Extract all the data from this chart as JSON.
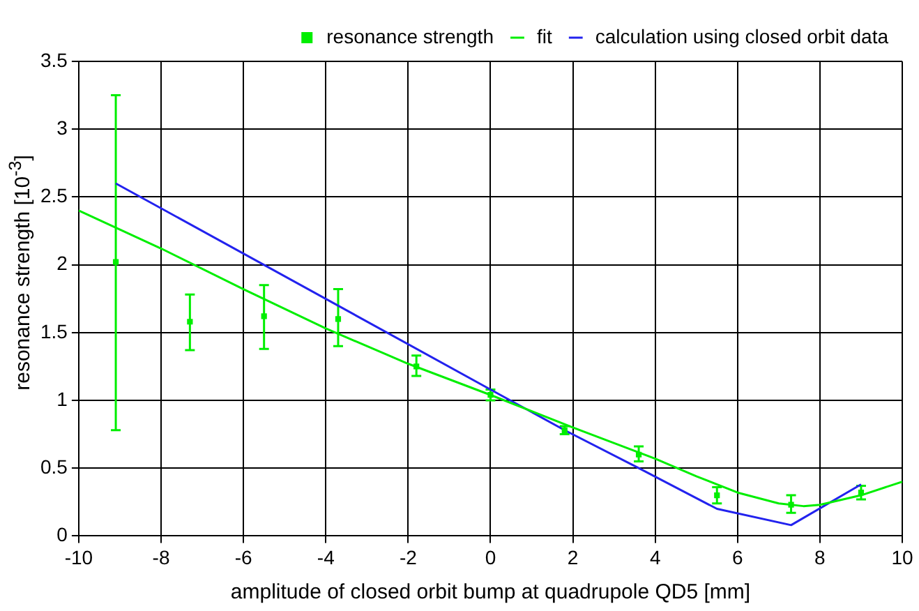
{
  "chart_data": {
    "type": "scatter",
    "xlabel": "amplitude of closed orbit bump at quadrupole QD5 [mm]",
    "ylabel": "resonance strength [10$^{-3}$]",
    "xlim": [
      -10,
      10
    ],
    "xticks": [
      -10,
      -8,
      -6,
      -4,
      -2,
      0,
      2,
      4,
      6,
      8,
      10
    ],
    "ylim": [
      0,
      3.5
    ],
    "yticks": [
      0,
      0.5,
      1,
      1.5,
      2,
      2.5,
      3,
      3.5
    ],
    "grid": true,
    "legend": "top right",
    "series": [
      {
        "name": "resonance strength",
        "color": "#00ee00",
        "marker": "square",
        "x": [
          -9.1,
          -7.3,
          -5.5,
          -3.7,
          -1.8,
          0,
          1.8,
          3.6,
          5.5,
          7.3,
          9
        ],
        "values": [
          2.02,
          1.58,
          1.62,
          1.6,
          1.25,
          1.04,
          0.78,
          0.6,
          0.3,
          0.23,
          0.32
        ],
        "errors": [
          [
            0.78,
            3.25
          ],
          [
            1.37,
            1.78
          ],
          [
            1.38,
            1.85
          ],
          [
            1.4,
            1.82
          ],
          [
            1.18,
            1.33
          ],
          [
            1.0,
            1.08
          ],
          [
            0.75,
            0.81
          ],
          [
            0.55,
            0.66
          ],
          [
            0.24,
            0.36
          ],
          [
            0.17,
            0.3
          ],
          [
            0.27,
            0.37
          ]
        ]
      },
      {
        "name": "fit",
        "type": "line",
        "color": "#00ee00",
        "line_style": "solid",
        "x": [
          -10,
          -8,
          -6,
          -4,
          -2,
          0,
          2,
          4,
          5,
          6,
          7,
          7.6,
          8,
          9,
          10
        ],
        "values": [
          2.4,
          2.12,
          1.82,
          1.53,
          1.27,
          1.04,
          0.8,
          0.57,
          0.44,
          0.32,
          0.24,
          0.22,
          0.23,
          0.3,
          0.4
        ]
      },
      {
        "name": "calculation using closed orbit data",
        "type": "line",
        "color": "#2222ee",
        "line_style": "solid",
        "x": [
          -9.1,
          0,
          1.8,
          3.6,
          5.5,
          7.3,
          9
        ],
        "values": [
          2.6,
          1.08,
          0.78,
          0.5,
          0.2,
          0.08,
          0.38
        ]
      }
    ]
  }
}
